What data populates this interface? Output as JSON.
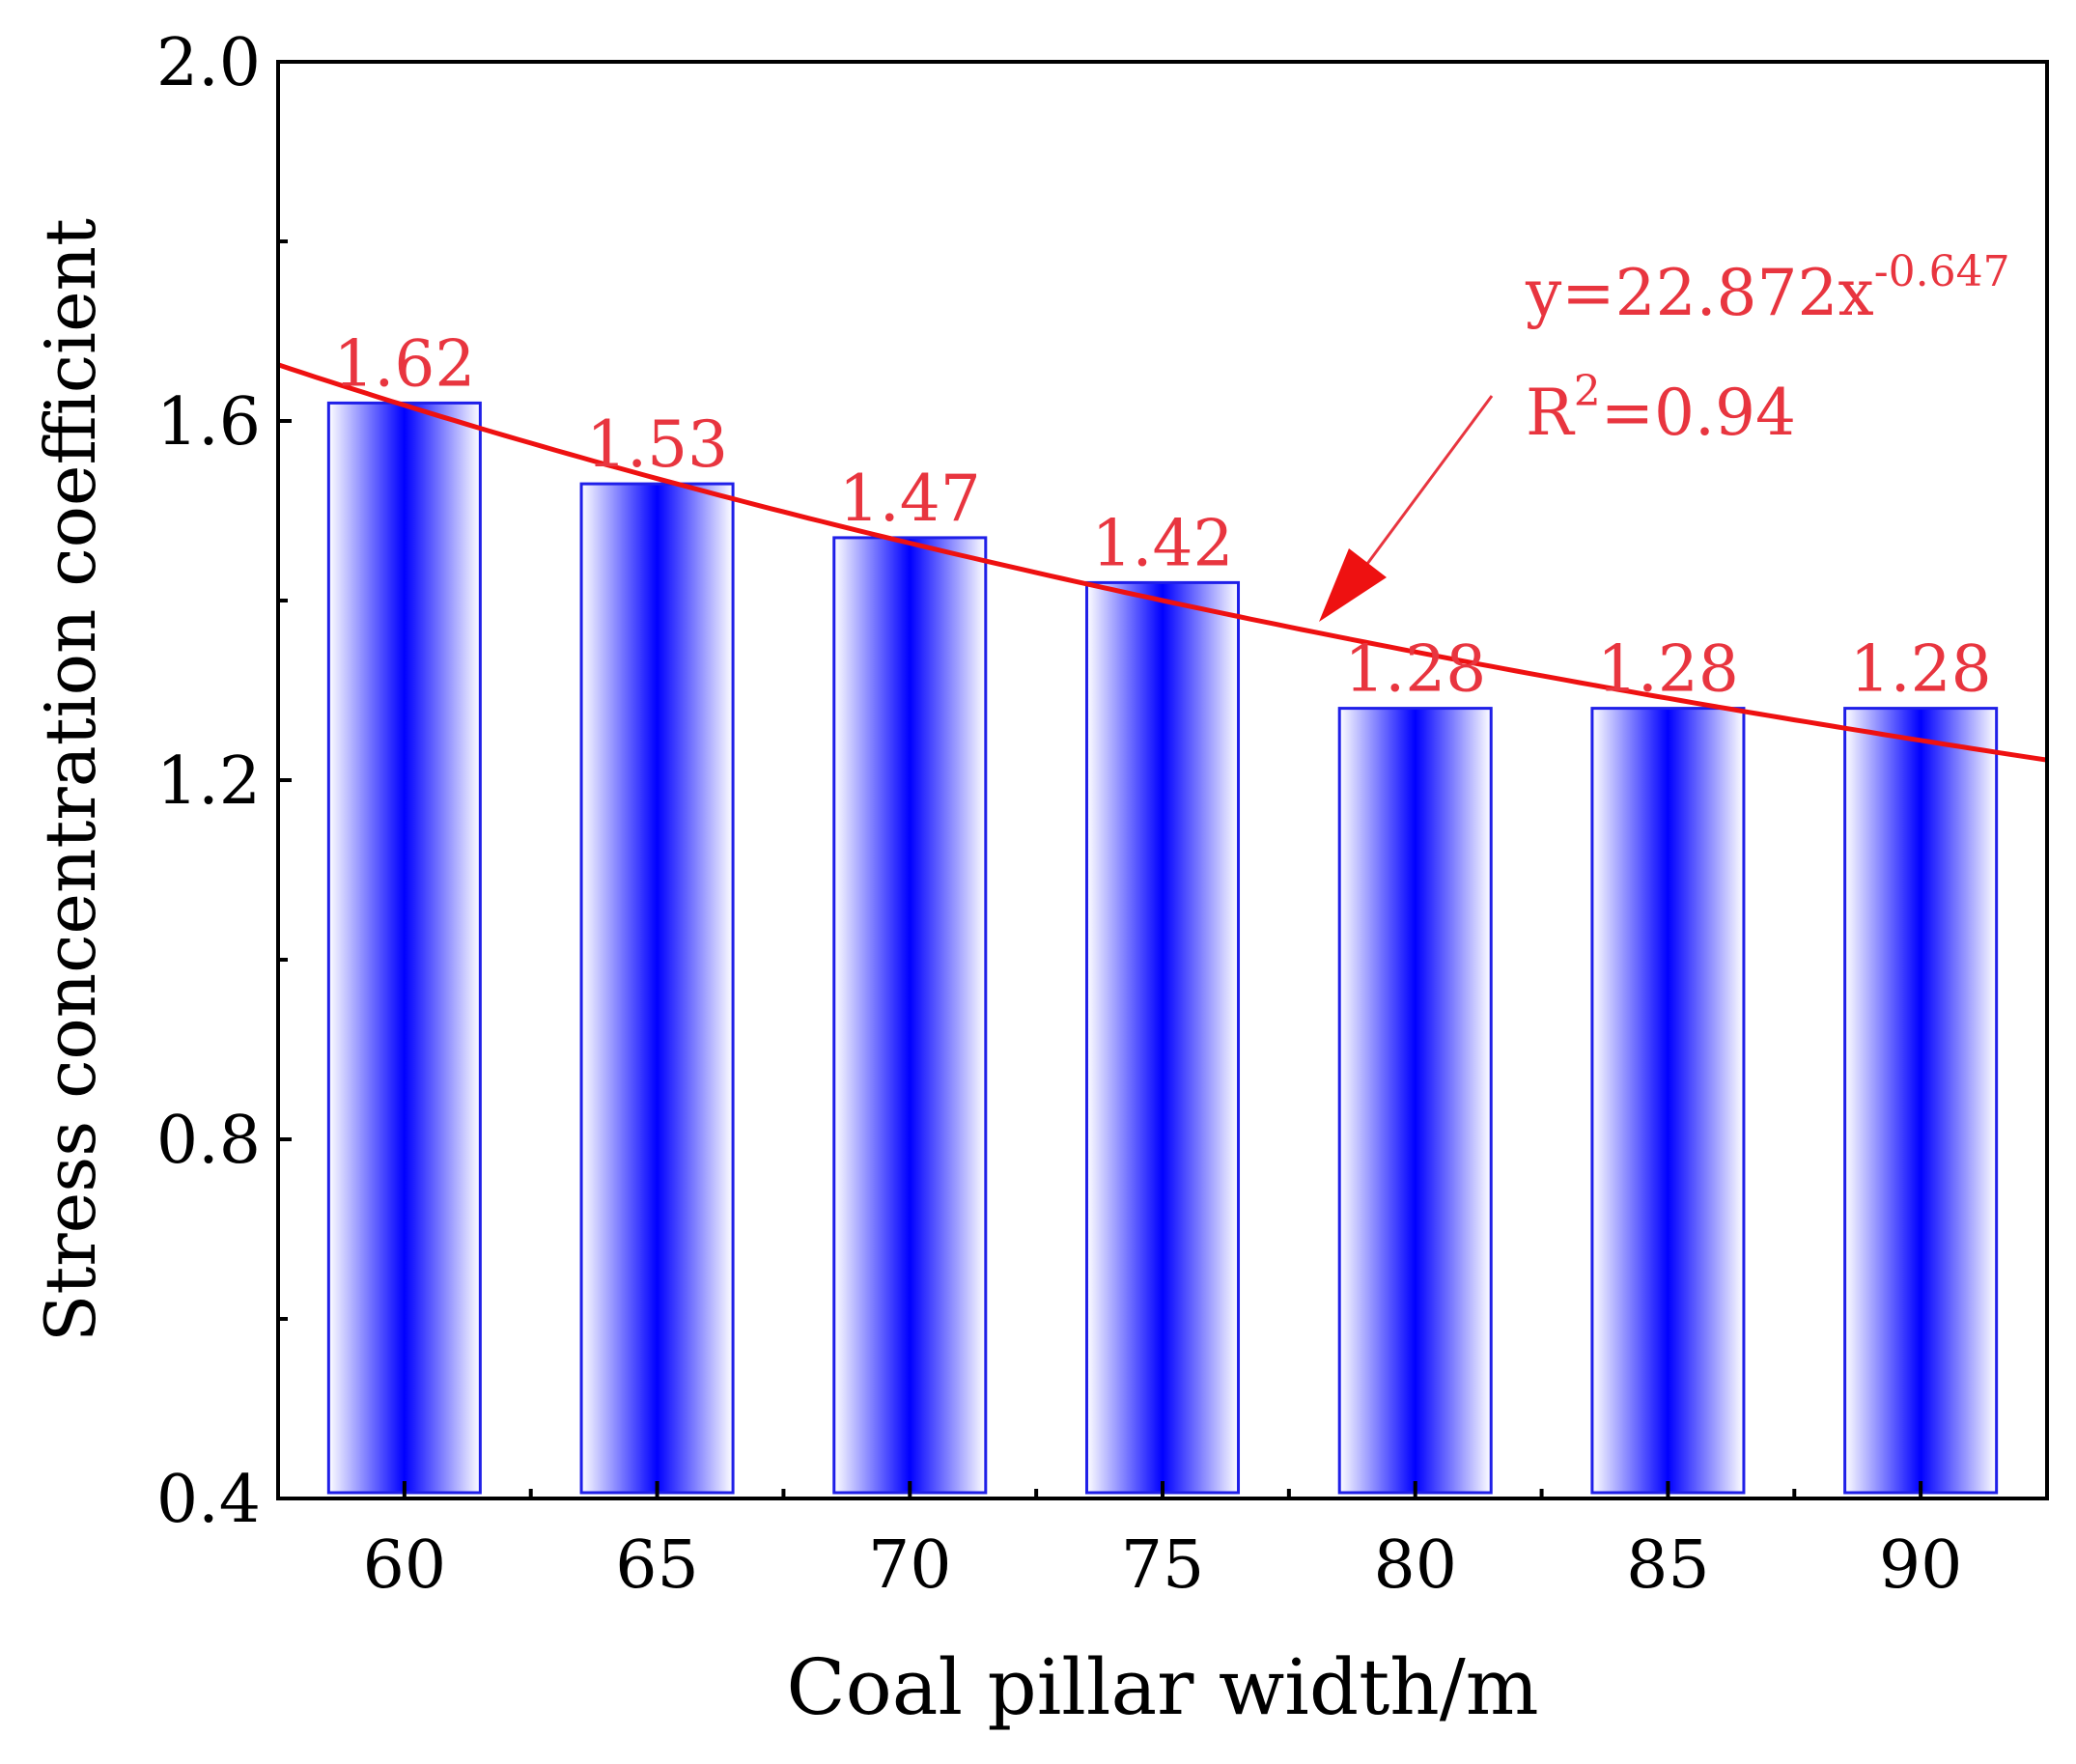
{
  "chart_data": {
    "type": "bar",
    "xlabel": "Coal pillar width/m",
    "ylabel": "Stress concentration coefficient",
    "categories": [
      "60",
      "65",
      "70",
      "75",
      "80",
      "85",
      "90"
    ],
    "values": [
      1.62,
      1.53,
      1.47,
      1.42,
      1.28,
      1.28,
      1.28
    ],
    "value_labels": [
      "1.62",
      "1.53",
      "1.47",
      "1.42",
      "1.28",
      "1.28",
      "1.28"
    ],
    "ylim": [
      0.4,
      2.0
    ],
    "y_ticks": [
      0.4,
      0.8,
      1.2,
      1.6,
      2.0
    ],
    "y_tick_labels": [
      "0.4",
      "0.8",
      "1.2",
      "1.6",
      "2.0"
    ],
    "y_minor_ticks": [
      0.6,
      1.0,
      1.4,
      1.8
    ],
    "x_range": [
      57.5,
      92.5
    ],
    "grid": false,
    "legend": "none",
    "fit": {
      "type": "power",
      "a": 22.872,
      "b": -0.647,
      "equation_prefix": "y=22.872x",
      "equation_exponent": "-0.647",
      "r2_prefix": "R",
      "r2_exponent": "2",
      "r2_suffix": "=0.94"
    },
    "colors": {
      "bar_edge": "#1f1fe8",
      "bar_center": "#0000ff",
      "bar_side": "#ffffff",
      "fit_line": "#ee1111",
      "labels": "#e8353f",
      "axis": "#000000"
    }
  }
}
